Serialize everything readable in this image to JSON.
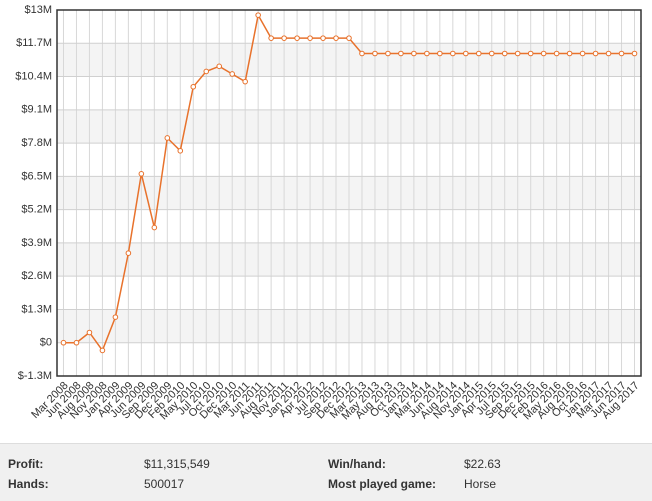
{
  "chart_data": {
    "type": "line",
    "categories": [
      "Mar 2008",
      "Jun 2008",
      "Aug 2008",
      "Nov 2008",
      "Jan 2009",
      "Apr 2009",
      "Jun 2009",
      "Sep 2009",
      "Dec 2009",
      "Feb 2010",
      "May 2010",
      "Jul 2010",
      "Oct 2010",
      "Dec 2010",
      "Mar 2011",
      "Jun 2011",
      "Aug 2011",
      "Nov 2011",
      "Jan 2012",
      "Apr 2012",
      "Jul 2012",
      "Sep 2012",
      "Dec 2012",
      "Mar 2013",
      "May 2013",
      "Aug 2013",
      "Oct 2013",
      "Jan 2014",
      "Mar 2014",
      "Jun 2014",
      "Aug 2014",
      "Nov 2014",
      "Jan 2015",
      "Apr 2015",
      "Jul 2015",
      "Sep 2015",
      "Dec 2015",
      "Feb 2016",
      "May 2016",
      "Aug 2016",
      "Oct 2016",
      "Jan 2017",
      "Mar 2017",
      "Jun 2017",
      "Aug 2017"
    ],
    "values": [
      0,
      0,
      400000,
      -300000,
      1000000,
      3500000,
      6600000,
      4500000,
      8000000,
      7500000,
      10000000,
      10600000,
      10800000,
      10500000,
      10200000,
      12800000,
      11900000,
      11900000,
      11900000,
      11900000,
      11900000,
      11900000,
      11900000,
      11300000,
      11300000,
      11300000,
      11300000,
      11300000,
      11300000,
      11300000,
      11300000,
      11300000,
      11300000,
      11300000,
      11300000,
      11300000,
      11300000,
      11300000,
      11300000,
      11300000,
      11300000,
      11300000,
      11300000,
      11300000,
      11300000
    ],
    "color": "#e8722c",
    "ylim": [
      -1300000,
      13000000
    ],
    "yticks": [
      {
        "value": -1300000,
        "label": "$-1.3M"
      },
      {
        "value": 0,
        "label": "$0"
      },
      {
        "value": 1300000,
        "label": "$1.3M"
      },
      {
        "value": 2600000,
        "label": "$2.6M"
      },
      {
        "value": 3900000,
        "label": "$3.9M"
      },
      {
        "value": 5200000,
        "label": "$5.2M"
      },
      {
        "value": 6500000,
        "label": "$6.5M"
      },
      {
        "value": 7800000,
        "label": "$7.8M"
      },
      {
        "value": 9100000,
        "label": "$9.1M"
      },
      {
        "value": 10400000,
        "label": "$10.4M"
      },
      {
        "value": 11700000,
        "label": "$11.7M"
      },
      {
        "value": 13000000,
        "label": "$13M"
      }
    ],
    "grid": true
  },
  "stats": {
    "rows": [
      [
        "Profit:",
        "$11,315,549",
        "Win/hand:",
        "$22.63"
      ],
      [
        "Hands:",
        "500017",
        "Most played game:",
        "Horse"
      ]
    ]
  }
}
